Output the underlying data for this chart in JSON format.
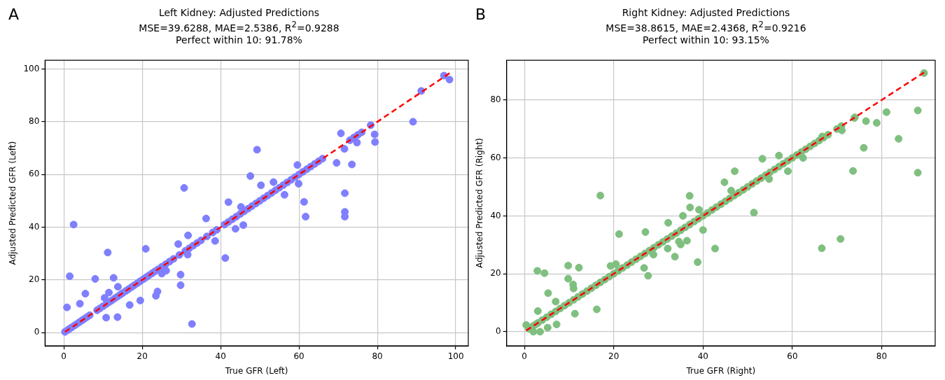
{
  "chart_data": [
    {
      "type": "scatter",
      "title": "Left Kidney: Adjusted Predictions",
      "subtitle": "MSE=39.6288, MAE=2.5386, R$^{2}$=0.9288\nPerfect within 10: 91.78%",
      "annotations": [
        "A"
      ],
      "xlabel": "True GFR (Left)",
      "ylabel": "Adjusted Predicted GFR (Left)",
      "xlim": [
        -4.8,
        103.2
      ],
      "ylim": [
        -5,
        103.3
      ],
      "xticks": [
        0,
        20,
        40,
        60,
        80,
        100
      ],
      "yticks": [
        0,
        20,
        40,
        60,
        80,
        100
      ],
      "grid": true,
      "legend": false,
      "series": [
        {
          "type": "scatter",
          "color": "#7f7fff",
          "marker": "circle",
          "x": [
            2.5,
            0.8,
            1.5,
            11.2,
            8.0,
            5.5,
            4.1,
            10.8,
            13.7,
            12.7,
            13.8,
            11.5,
            10.4,
            16.8,
            19.5,
            20.9,
            23.5,
            23.9,
            25.0,
            26.1,
            29.8,
            29.8,
            29.2,
            30.7,
            31.7,
            31.6,
            32.7,
            36.3,
            38.6,
            41.2,
            42.0,
            43.8,
            45.8,
            45.2,
            47.6,
            49.3,
            50.3,
            53.5,
            56.3,
            59.9,
            59.6,
            61.3,
            61.7,
            69.6,
            70.7,
            71.6,
            73.5,
            71.7,
            71.7,
            71.7,
            74.8,
            79.3,
            79.4,
            78.3,
            89.1,
            91.2,
            97.0,
            98.4,
            0.3,
            1,
            1.5,
            2,
            2.7,
            3.3,
            4,
            4.7,
            5.3,
            6,
            6.6,
            8.5,
            9.2,
            10,
            10.8,
            11.5,
            12.2,
            13,
            13.7,
            14.4,
            15,
            15.8,
            16.5,
            17.3,
            18,
            18.8,
            19.5,
            20.3,
            21,
            21.7,
            22.5,
            23.2,
            24,
            25,
            26,
            27,
            28,
            29.5,
            31,
            32,
            33,
            34,
            35,
            36.5,
            38,
            39,
            41,
            42,
            43,
            44,
            45,
            46,
            47,
            48,
            49,
            50,
            51,
            52,
            53,
            54,
            55,
            56,
            57,
            58,
            59,
            60,
            61,
            62,
            63,
            64,
            65,
            66,
            73,
            74,
            75,
            76
          ],
          "values": [
            41.0,
            9.6,
            21.4,
            30.4,
            20.4,
            14.8,
            11.0,
            5.7,
            5.9,
            20.8,
            17.4,
            15.2,
            13.2,
            10.5,
            12.2,
            31.8,
            14.0,
            15.6,
            22.4,
            23.5,
            22.0,
            18.0,
            33.6,
            54.9,
            36.9,
            29.6,
            3.3,
            43.3,
            34.8,
            28.3,
            49.5,
            39.4,
            40.8,
            47.7,
            59.4,
            69.4,
            55.9,
            57.1,
            52.3,
            56.5,
            63.6,
            49.6,
            44.0,
            64.4,
            75.6,
            69.7,
            63.8,
            52.9,
            45.8,
            44.0,
            72.1,
            75.2,
            72.3,
            78.7,
            80.0,
            91.7,
            97.5,
            96.0,
            0.3,
            1,
            1.5,
            2,
            2.7,
            3.3,
            4,
            4.7,
            5.3,
            6,
            6.6,
            8.5,
            9.2,
            10,
            10.8,
            11.5,
            12.2,
            13,
            13.7,
            14.4,
            15,
            15.8,
            16.5,
            17.3,
            18,
            18.8,
            19.5,
            20.3,
            21,
            21.7,
            22.5,
            23.2,
            24,
            25,
            26,
            27,
            28,
            29.5,
            31,
            32,
            33,
            34,
            35,
            36.5,
            38,
            39,
            41,
            42,
            43,
            44,
            45,
            46,
            47,
            48,
            49,
            50,
            51,
            52,
            53,
            54,
            55,
            56,
            57,
            58,
            59,
            60,
            61,
            62,
            63,
            64,
            65,
            66,
            73,
            74,
            75,
            76
          ]
        },
        {
          "type": "line",
          "color": "#ff0000",
          "line_style": "dashed",
          "marker": "none",
          "x": [
            0.3,
            98.4
          ],
          "values": [
            0.3,
            98.4
          ]
        }
      ]
    },
    {
      "type": "scatter",
      "title": "Right Kidney: Adjusted Predictions",
      "subtitle": "MSE=38.8615, MAE=2.4368, R$^{2}$=0.9216\nPerfect within 10: 93.15%",
      "annotations": [
        "B"
      ],
      "xlabel": "True GFR (Right)",
      "ylabel": "Adjusted Predicted GFR (Right)",
      "xlim": [
        -4,
        92
      ],
      "ylim": [
        -4.9,
        93.7
      ],
      "xticks": [
        0,
        20,
        40,
        60,
        80
      ],
      "yticks": [
        0,
        20,
        40,
        60,
        80
      ],
      "grid": true,
      "legend": false,
      "series": [
        {
          "type": "scatter",
          "color": "#7fbf7f",
          "marker": "circle",
          "x": [
            2.9,
            4.5,
            5.3,
            7.0,
            3.0,
            5.2,
            7.2,
            3.5,
            2.0,
            0.4,
            9.8,
            9.8,
            10.9,
            11.0,
            12.2,
            11.3,
            16.2,
            17.0,
            19.3,
            20.5,
            21.2,
            26.8,
            27.7,
            27.1,
            28.9,
            32.2,
            32.1,
            33.7,
            34.6,
            35.0,
            36.4,
            35.5,
            37.0,
            37.1,
            39.1,
            40.0,
            38.8,
            42.7,
            47.1,
            44.8,
            46.3,
            51.4,
            53.3,
            57.0,
            59.0,
            54.8,
            62.4,
            66.7,
            71.1,
            66.6,
            70.8,
            73.6,
            73.9,
            76.0,
            76.5,
            78.9,
            81.1,
            83.8,
            88.1,
            88.1,
            89.5,
            1,
            2,
            2.5,
            3,
            4,
            5,
            6,
            7,
            8,
            9,
            10,
            11,
            12,
            13,
            14,
            15,
            16,
            17,
            18,
            19,
            20,
            21,
            22,
            23,
            24,
            25,
            26,
            27,
            28,
            29,
            30,
            31,
            32,
            33,
            34,
            35,
            36,
            37,
            38,
            39,
            40,
            41,
            42,
            43,
            44,
            45,
            46,
            47,
            48,
            49,
            50,
            51,
            52,
            53,
            54,
            55,
            56,
            57,
            58,
            59,
            60,
            61,
            62,
            63,
            64,
            65,
            66,
            67,
            68,
            70,
            71,
            74
          ],
          "values": [
            21.0,
            20.2,
            13.3,
            10.4,
            7.1,
            1.4,
            2.5,
            0.0,
            0.0,
            2.3,
            22.8,
            18.3,
            16.3,
            14.9,
            22.1,
            6.2,
            7.7,
            47.0,
            22.7,
            23.3,
            33.7,
            22.0,
            19.3,
            34.4,
            26.6,
            37.6,
            28.7,
            25.9,
            31.1,
            30.1,
            31.4,
            40.0,
            46.9,
            42.9,
            42.1,
            35.1,
            24.0,
            28.7,
            55.4,
            51.6,
            48.7,
            41.1,
            59.7,
            60.8,
            55.4,
            52.7,
            60.0,
            67.4,
            69.5,
            28.8,
            32.0,
            55.5,
            73.8,
            63.5,
            72.7,
            72.1,
            75.8,
            66.6,
            76.4,
            54.9,
            89.3,
            1,
            2,
            2.5,
            3,
            4,
            5,
            6,
            7,
            8,
            9,
            10,
            11,
            12,
            13,
            14,
            15,
            16,
            17,
            18,
            19,
            20,
            21,
            22,
            23,
            24,
            25,
            26,
            27,
            28,
            29,
            30,
            31,
            32,
            33,
            34,
            35,
            36,
            37,
            38,
            39,
            40,
            41,
            42,
            43,
            44,
            45,
            46,
            47,
            48,
            49,
            50,
            51,
            52,
            53,
            54,
            55,
            56,
            57,
            58,
            59,
            60,
            61,
            62,
            63,
            64,
            65,
            66,
            67,
            68,
            70,
            71,
            74
          ]
        },
        {
          "type": "line",
          "color": "#ff0000",
          "line_style": "dashed",
          "marker": "none",
          "x": [
            0.4,
            89.5
          ],
          "values": [
            0.4,
            89.5
          ]
        }
      ]
    }
  ]
}
